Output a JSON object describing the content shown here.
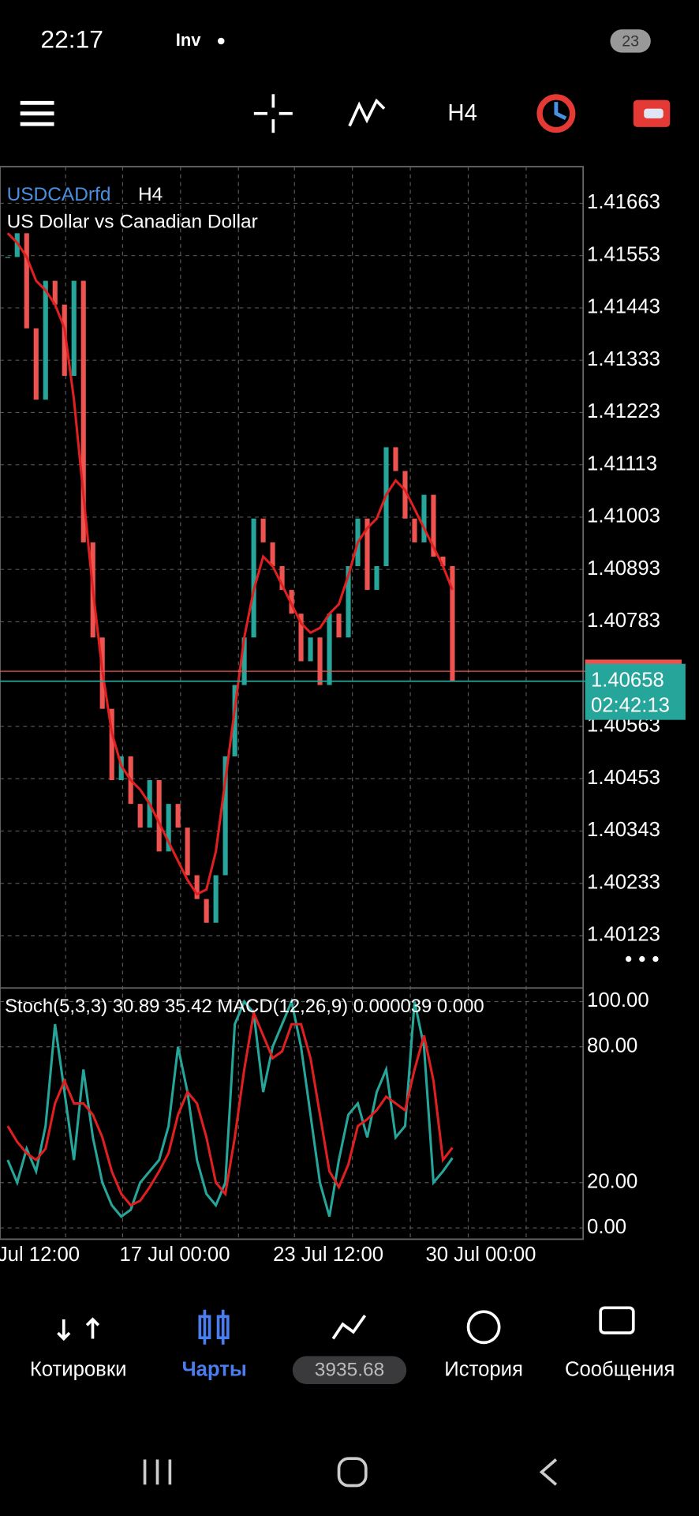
{
  "status_bar": {
    "time": "22:17",
    "app_badge": "Inv",
    "battery": "23"
  },
  "toolbar": {
    "timeframe": "H4"
  },
  "chart": {
    "symbol": "USDCADrfd",
    "timeframe": "H4",
    "description": "US Dollar vs Canadian Dollar",
    "ylim": [
      1.40017,
      1.4174
    ],
    "yticks": [
      1.41663,
      1.41553,
      1.41443,
      1.41333,
      1.41223,
      1.41113,
      1.41003,
      1.40893,
      1.40783,
      1.40563,
      1.40453,
      1.40343,
      1.40233,
      1.40123
    ],
    "bid": 1.40679,
    "price": 1.40658,
    "countdown": "02:42:13",
    "closes": [
      1.4155,
      1.416,
      1.414,
      1.4125,
      1.415,
      1.4145,
      1.413,
      1.415,
      1.4095,
      1.4075,
      1.406,
      1.4045,
      1.405,
      1.404,
      1.4035,
      1.4045,
      1.403,
      1.404,
      1.4035,
      1.4025,
      1.402,
      1.4015,
      1.4025,
      1.405,
      1.4065,
      1.4075,
      1.41,
      1.4095,
      1.409,
      1.4085,
      1.408,
      1.407,
      1.4075,
      1.4065,
      1.408,
      1.4075,
      1.409,
      1.41,
      1.4085,
      1.409,
      1.4115,
      1.411,
      1.41,
      1.4095,
      1.4105,
      1.4092,
      1.409,
      1.40658
    ],
    "ma": [
      1.416,
      1.4158,
      1.4155,
      1.415,
      1.4148,
      1.4145,
      1.414,
      1.4125,
      1.4105,
      1.4085,
      1.4068,
      1.4055,
      1.4048,
      1.4045,
      1.4043,
      1.404,
      1.4036,
      1.4032,
      1.4028,
      1.4024,
      1.4021,
      1.4022,
      1.403,
      1.4045,
      1.406,
      1.4075,
      1.4085,
      1.4092,
      1.409,
      1.4086,
      1.4082,
      1.4078,
      1.4076,
      1.4077,
      1.408,
      1.4082,
      1.4088,
      1.4095,
      1.4098,
      1.41,
      1.4105,
      1.4108,
      1.4106,
      1.4102,
      1.4098,
      1.4094,
      1.409,
      1.4085
    ]
  },
  "indicator": {
    "label": "Stoch(5,3,3) 30.89 35.42 MACD(12,26,9) 0.000039 0.000",
    "ylim": [
      -5,
      106
    ],
    "yticks": [
      {
        "value": 100,
        "label": "100.00"
      },
      {
        "value": 80,
        "label": "80.00"
      },
      {
        "value": 20,
        "label": "20.00"
      },
      {
        "value": 0,
        "label": "0.00"
      }
    ],
    "main": [
      30,
      20,
      35,
      25,
      45,
      90,
      60,
      30,
      70,
      40,
      20,
      10,
      5,
      8,
      20,
      25,
      30,
      45,
      80,
      60,
      30,
      15,
      10,
      20,
      90,
      100,
      95,
      60,
      80,
      90,
      100,
      80,
      50,
      20,
      5,
      30,
      50,
      55,
      40,
      60,
      70,
      40,
      45,
      100,
      80,
      20,
      25,
      30.89
    ],
    "signal": [
      45,
      38,
      33,
      30,
      35,
      55,
      65,
      55,
      55,
      50,
      40,
      25,
      15,
      10,
      12,
      18,
      25,
      33,
      50,
      60,
      55,
      40,
      20,
      15,
      40,
      70,
      95,
      85,
      75,
      78,
      90,
      90,
      75,
      50,
      25,
      18,
      28,
      45,
      48,
      52,
      58,
      55,
      52,
      70,
      85,
      65,
      30,
      35.42
    ]
  },
  "time_axis": [
    "Jul 12:00",
    "17 Jul 00:00",
    "23 Jul 12:00",
    "30 Jul 00:00"
  ],
  "nav": {
    "quotes": "Котировки",
    "charts": "Чарты",
    "balance": "3935.68",
    "history": "История",
    "messages": "Сообщения"
  }
}
